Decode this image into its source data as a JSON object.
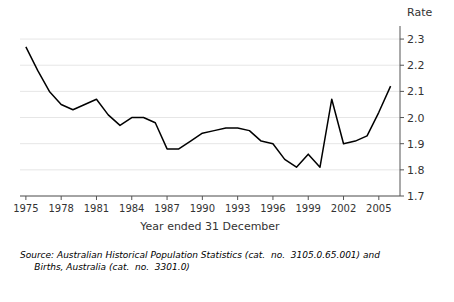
{
  "chart_data": {
    "type": "line",
    "x": [
      1975,
      1976,
      1977,
      1978,
      1979,
      1980,
      1981,
      1982,
      1983,
      1984,
      1985,
      1986,
      1987,
      1988,
      1989,
      1990,
      1991,
      1992,
      1993,
      1994,
      1995,
      1996,
      1997,
      1998,
      1999,
      2000,
      2001,
      2002,
      2003,
      2004,
      2005,
      2006
    ],
    "values": [
      2.27,
      2.18,
      2.1,
      2.05,
      2.03,
      2.05,
      2.07,
      2.01,
      1.97,
      2.0,
      2.0,
      1.98,
      1.88,
      1.88,
      1.91,
      1.94,
      1.95,
      1.96,
      1.96,
      1.95,
      1.91,
      1.9,
      1.84,
      1.81,
      1.86,
      1.81,
      2.07,
      1.9,
      1.91,
      1.93,
      2.02,
      2.12
    ],
    "color": "#000000",
    "xlim": [
      1974.5,
      2006.8
    ],
    "ylim": [
      1.7,
      2.35
    ],
    "xticks": [
      1975,
      1978,
      1981,
      1984,
      1987,
      1990,
      1993,
      1996,
      1999,
      2002,
      2005
    ],
    "yticks": [
      1.7,
      1.8,
      1.9,
      {
        "value": 2.0,
        "label": "2.0"
      },
      2.1,
      2.2,
      2.3
    ],
    "ylabel": "Rate",
    "xlabel": "Year ended 31 December",
    "annotations": [
      "Source: Australian Historical Population Statistics (cat.  no.  3105.0.65.001) and",
      "     Births, Australia (cat.  no.  3301.0)"
    ]
  }
}
